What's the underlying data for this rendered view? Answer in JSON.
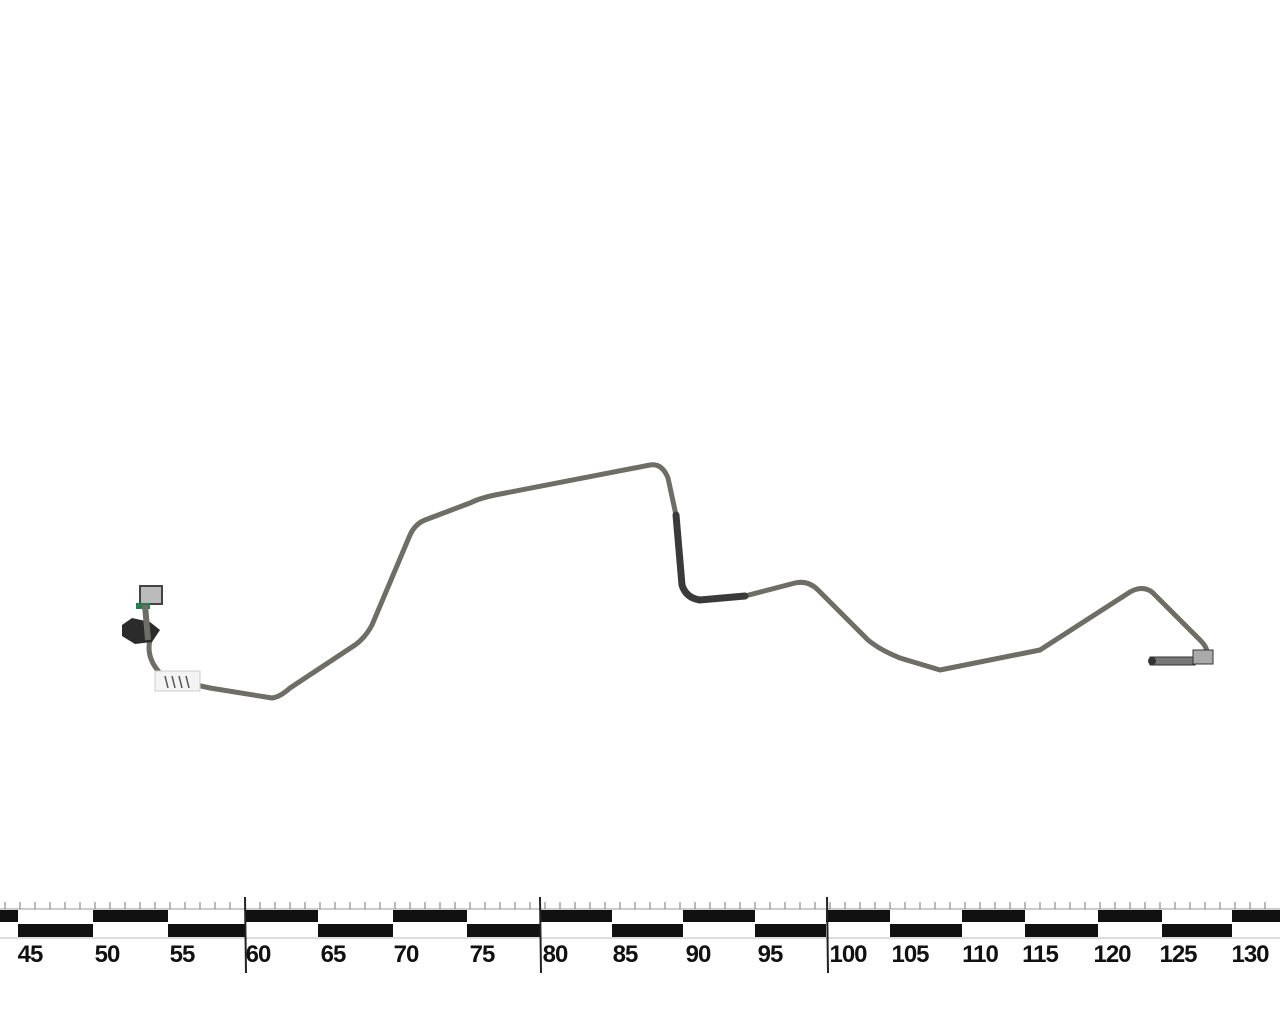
{
  "photo": {
    "subject": "brake-line",
    "tube_color": "#6e6e66",
    "background_color": "#ffffff"
  },
  "ruler": {
    "labels": [
      "45",
      "50",
      "55",
      "60",
      "65",
      "70",
      "75",
      "80",
      "85",
      "90",
      "95",
      "100",
      "105",
      "110",
      "115",
      "120",
      "125",
      "130"
    ],
    "block_color": "#111111"
  }
}
